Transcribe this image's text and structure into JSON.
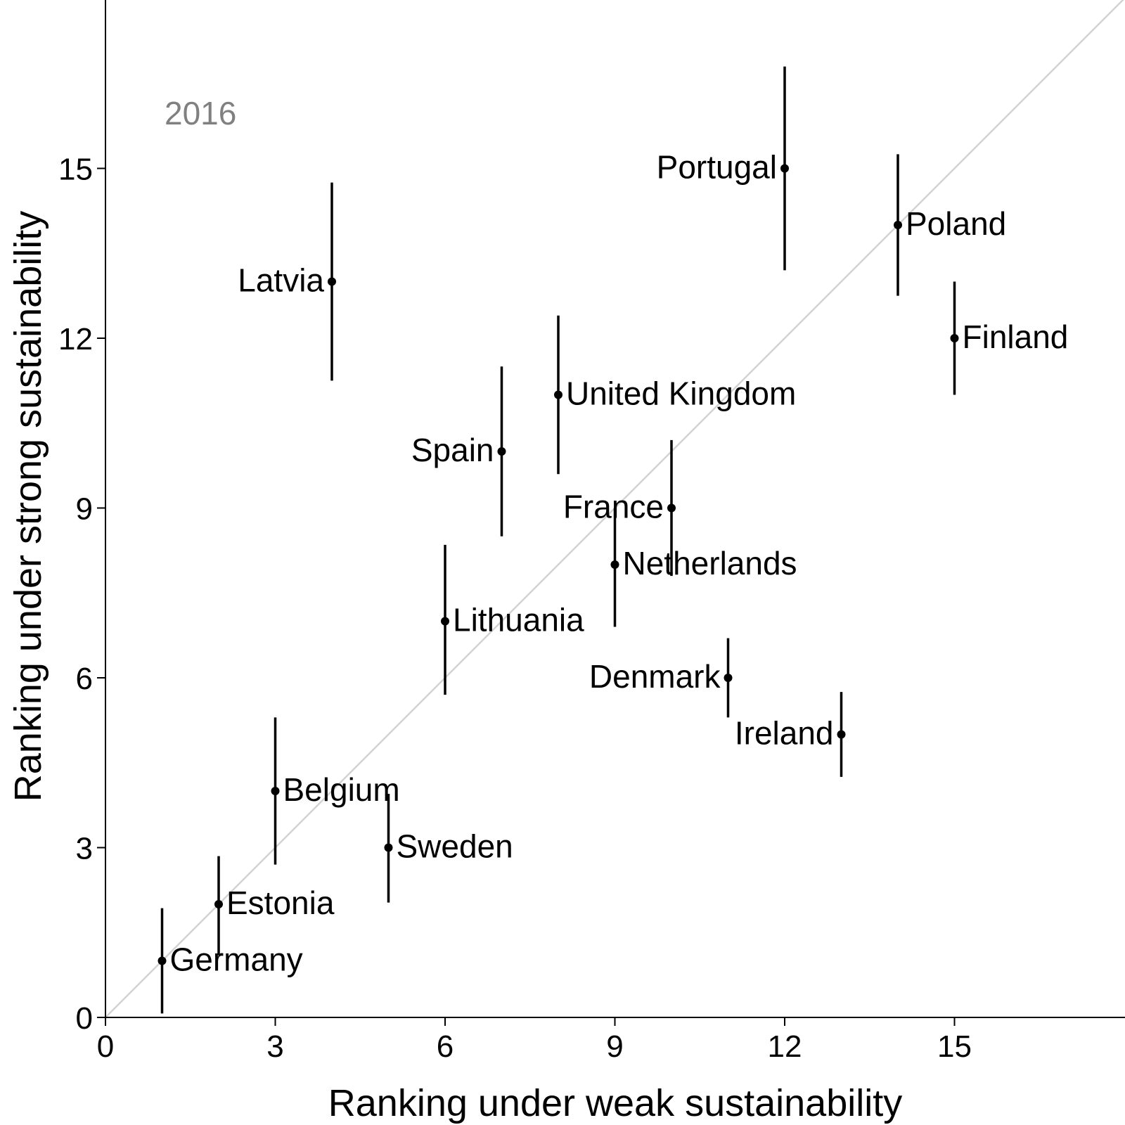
{
  "chart_data": {
    "type": "scatter",
    "annotation": "2016",
    "xlabel": "Ranking under weak sustainability",
    "ylabel": "Ranking under strong sustainability",
    "xlim": [
      0,
      18
    ],
    "ylim": [
      0,
      18
    ],
    "x_ticks": [
      0,
      3,
      6,
      9,
      12,
      15
    ],
    "y_ticks": [
      0,
      3,
      6,
      9,
      12,
      15
    ],
    "reference_line": "y = x",
    "reference_line_color": "#d3d3d3",
    "point_color": "#000000",
    "annotation_color": "#808080",
    "points": [
      {
        "label": "Germany",
        "x": 1,
        "y": 1,
        "lo": 0.07,
        "hi": 1.93,
        "side": "right"
      },
      {
        "label": "Estonia",
        "x": 2,
        "y": 2,
        "lo": 1.1,
        "hi": 2.85,
        "side": "right"
      },
      {
        "label": "Belgium",
        "x": 3,
        "y": 4,
        "lo": 2.7,
        "hi": 5.3,
        "side": "right"
      },
      {
        "label": "Latvia",
        "x": 4,
        "y": 13,
        "lo": 11.25,
        "hi": 14.75,
        "side": "left"
      },
      {
        "label": "Sweden",
        "x": 5,
        "y": 3,
        "lo": 2.03,
        "hi": 3.95,
        "side": "right"
      },
      {
        "label": "Lithuania",
        "x": 6,
        "y": 7,
        "lo": 5.7,
        "hi": 8.35,
        "side": "right"
      },
      {
        "label": "Spain",
        "x": 7,
        "y": 10,
        "lo": 8.5,
        "hi": 11.5,
        "side": "left"
      },
      {
        "label": "United Kingdom",
        "x": 8,
        "y": 11,
        "lo": 9.6,
        "hi": 12.4,
        "side": "right"
      },
      {
        "label": "Netherlands",
        "x": 9,
        "y": 8,
        "lo": 6.9,
        "hi": 9.0,
        "side": "right"
      },
      {
        "label": "France",
        "x": 10,
        "y": 9,
        "lo": 7.8,
        "hi": 10.2,
        "side": "left"
      },
      {
        "label": "Denmark",
        "x": 11,
        "y": 6,
        "lo": 5.3,
        "hi": 6.7,
        "side": "left"
      },
      {
        "label": "Portugal",
        "x": 12,
        "y": 15,
        "lo": 13.2,
        "hi": 16.8,
        "side": "left"
      },
      {
        "label": "Ireland",
        "x": 13,
        "y": 5,
        "lo": 4.25,
        "hi": 5.75,
        "side": "left"
      },
      {
        "label": "Poland",
        "x": 14,
        "y": 14,
        "lo": 12.75,
        "hi": 15.25,
        "side": "right"
      },
      {
        "label": "Finland",
        "x": 15,
        "y": 12,
        "lo": 11.0,
        "hi": 13.0,
        "side": "right"
      }
    ]
  }
}
